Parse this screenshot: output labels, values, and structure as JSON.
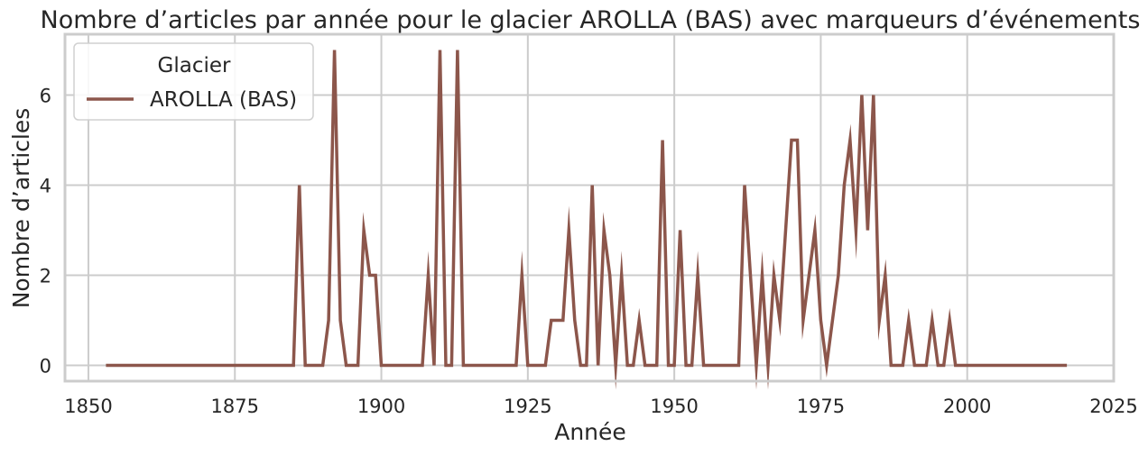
{
  "chart_data": {
    "type": "line",
    "title": "Nombre d’articles par année pour le glacier AROLLA (BAS) avec marqueurs d’événements",
    "xlabel": "Année",
    "ylabel": "Nombre d’articles",
    "xlim": [
      1846,
      2025
    ],
    "ylim": [
      -0.35,
      7.35
    ],
    "xticks": [
      1850,
      1875,
      1900,
      1925,
      1950,
      1975,
      2000,
      2025
    ],
    "yticks": [
      0,
      2,
      4,
      6
    ],
    "grid": true,
    "legend": {
      "title": "Glacier",
      "placement": "top-left"
    },
    "colors": {
      "line": "#8c564b",
      "grid": "#cccccc"
    },
    "series": [
      {
        "name": "AROLLA (BAS)",
        "x": [
          1853,
          1885,
          1886,
          1887,
          1888,
          1889,
          1890,
          1891,
          1892,
          1893,
          1894,
          1895,
          1896,
          1897,
          1898,
          1899,
          1900,
          1901,
          1902,
          1903,
          1904,
          1905,
          1906,
          1907,
          1908,
          1909,
          1910,
          1911,
          1912,
          1913,
          1914,
          1923,
          1924,
          1925,
          1928,
          1929,
          1930,
          1931,
          1932,
          1933,
          1934,
          1935,
          1936,
          1937,
          1938,
          1939,
          1940,
          1941,
          1942,
          1943,
          1944,
          1945,
          1946,
          1947,
          1948,
          1949,
          1950,
          1951,
          1952,
          1953,
          1954,
          1955,
          1956,
          1961,
          1962,
          1963,
          1964,
          1965,
          1966,
          1967,
          1968,
          1969,
          1970,
          1971,
          1972,
          1973,
          1974,
          1975,
          1976,
          1977,
          1978,
          1979,
          1980,
          1981,
          1982,
          1983,
          1984,
          1985,
          1986,
          1987,
          1988,
          1989,
          1990,
          1991,
          1992,
          1993,
          1994,
          1995,
          1996,
          1997,
          1998,
          2017
        ],
        "y": [
          0,
          0,
          4,
          0,
          0,
          0,
          0,
          1,
          7,
          1,
          0,
          0,
          0,
          3,
          2,
          2,
          0,
          0,
          0,
          0,
          0,
          0,
          0,
          0,
          2,
          0,
          7,
          0,
          0,
          7,
          0,
          0,
          2,
          0,
          0,
          1,
          1,
          1,
          3,
          1,
          0,
          0,
          4,
          0,
          3,
          2,
          0,
          2,
          0,
          0,
          1,
          0,
          0,
          0,
          5,
          0,
          0,
          3,
          0,
          0,
          2,
          0,
          0,
          0,
          4,
          2,
          0,
          2,
          0,
          2,
          1,
          3,
          5,
          5,
          1,
          2,
          3,
          1,
          0,
          1,
          2,
          4,
          5,
          3,
          6,
          3,
          6,
          1,
          2,
          0,
          0,
          0,
          1,
          0,
          0,
          0,
          1,
          0,
          0,
          1,
          0,
          0
        ]
      }
    ]
  }
}
